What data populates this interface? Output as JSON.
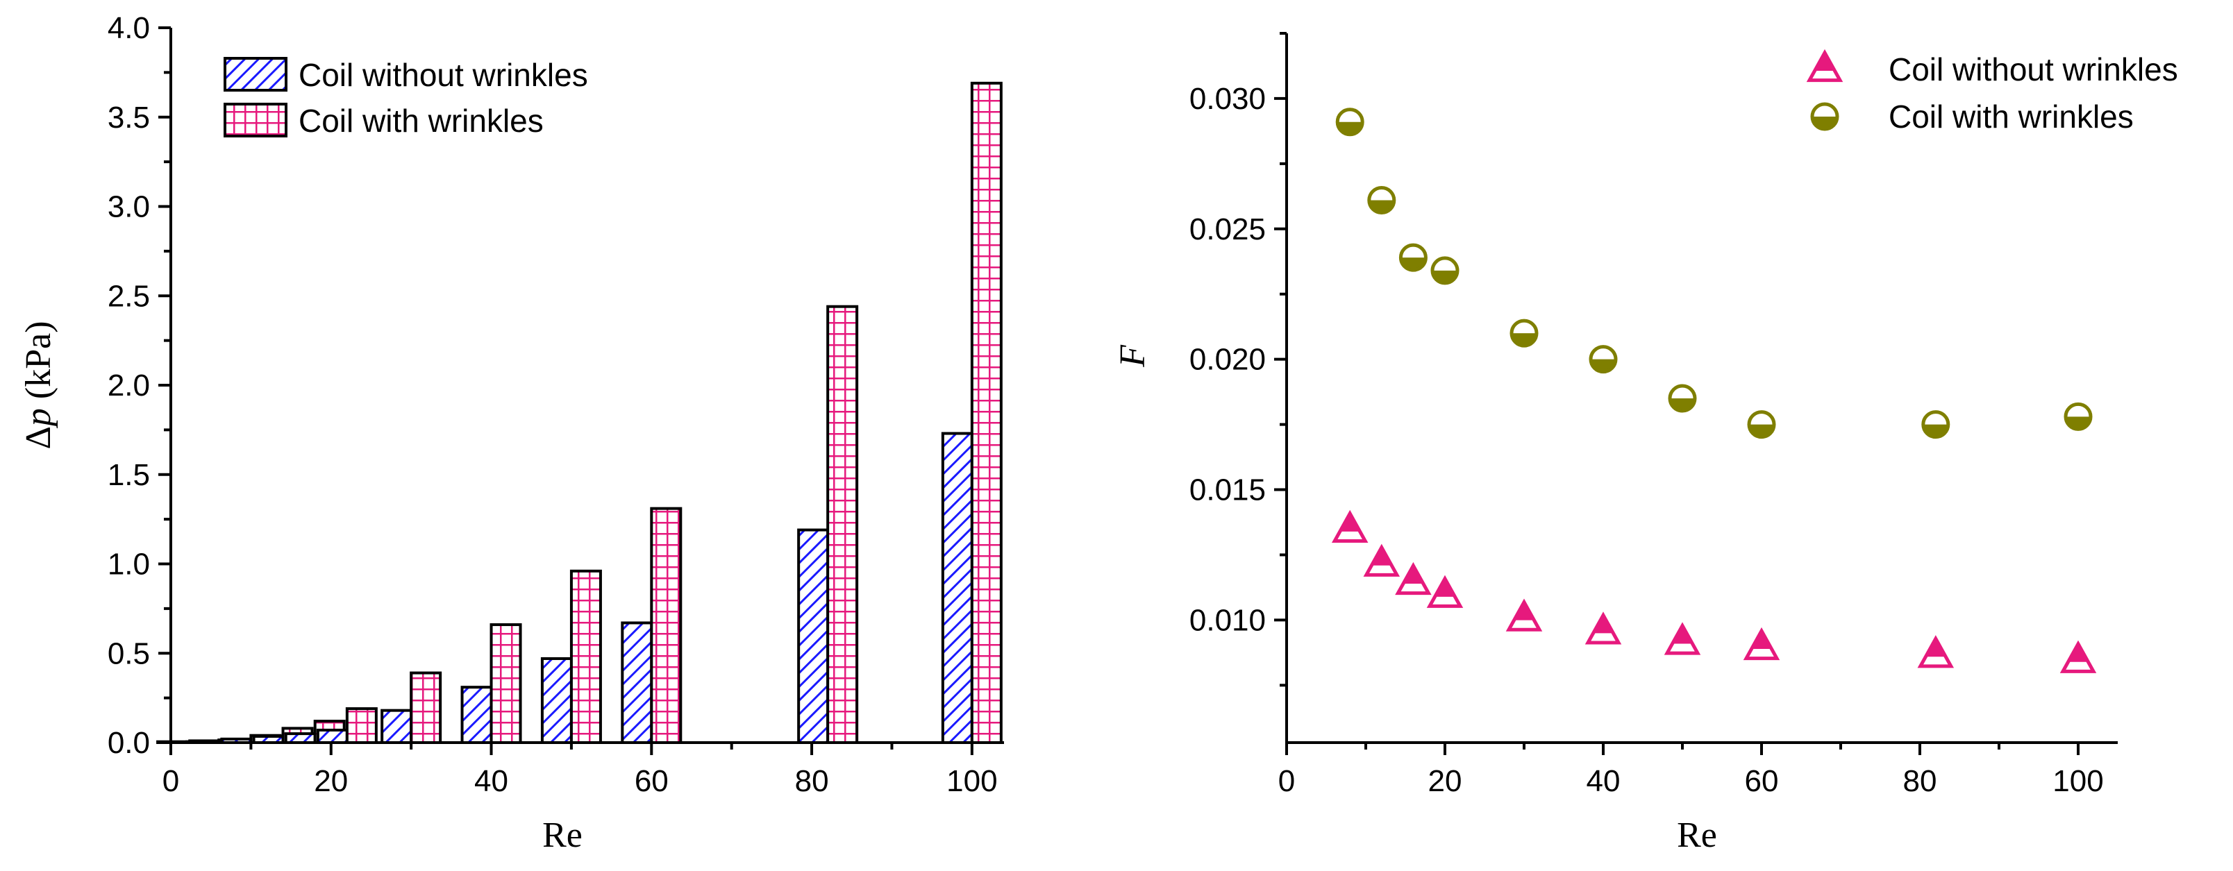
{
  "chart_data": [
    {
      "type": "bar",
      "title": "",
      "xlabel": "Re",
      "ylabel_symbol": "Δ",
      "ylabel_var": "p",
      "ylabel_unit": " (kPa)",
      "xlim": [
        0,
        104
      ],
      "ylim": [
        0,
        4.0
      ],
      "xticks": [
        0,
        20,
        40,
        60,
        80,
        100
      ],
      "xtick_labels": [
        "0",
        "20",
        "40",
        "60",
        "80",
        "100"
      ],
      "yticks": [
        0,
        0.5,
        1.0,
        1.5,
        2.0,
        2.5,
        3.0,
        3.5,
        4.0
      ],
      "ytick_labels": [
        "0.0",
        "0.5",
        "1.0",
        "1.5",
        "2.0",
        "2.5",
        "3.0",
        "3.5",
        "4.0"
      ],
      "x": [
        2,
        6,
        10,
        14,
        18,
        22,
        30,
        40,
        50,
        60,
        82,
        100
      ],
      "legend_position": "top-left",
      "series": [
        {
          "name": "Coil without wrinkles",
          "pattern": "diagonal-hatch",
          "color": "#1a1aff",
          "values": [
            0.005,
            0.01,
            0.02,
            0.035,
            0.05,
            0.07,
            0.18,
            0.31,
            0.47,
            0.67,
            1.19,
            1.73
          ]
        },
        {
          "name": "Coil with wrinkles",
          "pattern": "grid-hatch",
          "color": "#e6197d",
          "values": [
            0.005,
            0.015,
            0.04,
            0.08,
            0.12,
            0.19,
            0.39,
            0.66,
            0.96,
            1.31,
            2.44,
            3.69
          ]
        }
      ]
    },
    {
      "type": "scatter",
      "title": "",
      "xlabel": "Re",
      "ylabel": "F",
      "xlim": [
        0,
        105
      ],
      "ylim": [
        0.0053,
        0.0325
      ],
      "xticks": [
        0,
        20,
        40,
        60,
        80,
        100
      ],
      "xtick_labels": [
        "0",
        "20",
        "40",
        "60",
        "80",
        "100"
      ],
      "yticks": [
        0.01,
        0.015,
        0.02,
        0.025,
        0.03
      ],
      "ytick_labels": [
        "0.010",
        "0.015",
        "0.020",
        "0.025",
        "0.030"
      ],
      "legend_position": "top-right",
      "series": [
        {
          "name": "Coil without wrinkles",
          "marker": "triangle-half",
          "color": "#e6197d",
          "x": [
            8,
            12,
            16,
            20,
            30,
            40,
            50,
            60,
            82,
            100
          ],
          "y": [
            0.0135,
            0.0122,
            0.0115,
            0.011,
            0.0101,
            0.0096,
            0.0092,
            0.009,
            0.0087,
            0.0085
          ]
        },
        {
          "name": "Coil with wrinkles",
          "marker": "circle-half",
          "color": "#7f7f00",
          "x": [
            8,
            12,
            16,
            20,
            30,
            40,
            50,
            60,
            82,
            100
          ],
          "y": [
            0.0291,
            0.0261,
            0.0239,
            0.0234,
            0.021,
            0.02,
            0.0185,
            0.0175,
            0.0175,
            0.0178
          ]
        }
      ]
    }
  ]
}
